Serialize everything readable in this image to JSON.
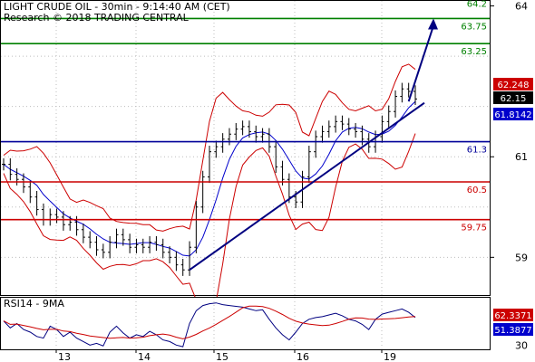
{
  "header": {
    "title": "LIGHT CRUDE OIL - 30min - 9:14:40 AM (CET)",
    "subtitle": "Research © 2018 TRADING CENTRAL"
  },
  "chart_data": [
    {
      "type": "candlestick",
      "y_ticks": [
        "64",
        "61",
        "59"
      ],
      "y_tick_values": [
        64,
        61,
        59
      ],
      "ylim": [
        58.25,
        64.1
      ],
      "x_tick_labels": [
        "13",
        "14",
        "15",
        "16",
        "19"
      ],
      "grid": true,
      "levels": [
        {
          "label": "64.2",
          "value": 64.2,
          "color": "#008000"
        },
        {
          "label": "63.75",
          "value": 63.75,
          "color": "#008000"
        },
        {
          "label": "63.25",
          "value": 63.25,
          "color": "#008000"
        },
        {
          "label": "61.3",
          "value": 61.3,
          "color": "#000099"
        },
        {
          "label": "60.5",
          "value": 60.5,
          "color": "#cc0000"
        },
        {
          "label": "59.75",
          "value": 59.75,
          "color": "#cc0000"
        }
      ],
      "price_tags": [
        {
          "label": "62.248",
          "value": 62.248,
          "color": "#cc0000"
        },
        {
          "label": "62.15",
          "value": 62.15,
          "color": "#000000"
        },
        {
          "label": "61.8142",
          "value": 61.8142,
          "color": "#0000cc"
        }
      ],
      "close_series": [
        60.85,
        60.65,
        60.55,
        60.4,
        60.2,
        59.95,
        59.75,
        59.85,
        59.8,
        59.65,
        59.7,
        59.55,
        59.4,
        59.3,
        59.15,
        59.1,
        59.3,
        59.45,
        59.35,
        59.2,
        59.25,
        59.2,
        59.3,
        59.25,
        59.1,
        59.0,
        58.85,
        58.75,
        59.2,
        60.0,
        60.6,
        61.1,
        61.2,
        61.35,
        61.45,
        61.55,
        61.6,
        61.5,
        61.4,
        61.45,
        61.2,
        60.8,
        60.55,
        60.2,
        60.1,
        60.6,
        61.1,
        61.4,
        61.5,
        61.6,
        61.7,
        61.65,
        61.55,
        61.5,
        61.35,
        61.2,
        61.4,
        61.7,
        61.9,
        62.2,
        62.35,
        62.3,
        62.15
      ],
      "trend_line": {
        "from": [
          28,
          58.75
        ],
        "to": [
          62,
          62.0
        ]
      },
      "forecast_arrow": {
        "from": [
          61,
          62.1
        ],
        "to": [
          62,
          63.75
        ]
      }
    },
    {
      "type": "line",
      "title": "RSI14 - 9MA",
      "y_ticks": [
        "30"
      ],
      "ylim": [
        25,
        85
      ],
      "series": [
        {
          "name": "RSI14",
          "color": "#000080"
        },
        {
          "name": "9MA",
          "color": "#cc0000"
        }
      ],
      "rsi_values": [
        58,
        50,
        55,
        48,
        45,
        40,
        38,
        52,
        48,
        40,
        45,
        38,
        34,
        30,
        32,
        29,
        45,
        52,
        44,
        38,
        42,
        40,
        46,
        42,
        36,
        34,
        30,
        28,
        55,
        70,
        76,
        78,
        79,
        77,
        76,
        75,
        74,
        72,
        70,
        71,
        60,
        50,
        42,
        36,
        45,
        55,
        60,
        62,
        63,
        65,
        67,
        64,
        60,
        58,
        54,
        48,
        60,
        66,
        68,
        70,
        72,
        68,
        62
      ],
      "tags": [
        {
          "label": "62.3371",
          "value": 62.3371,
          "color": "#cc0000"
        },
        {
          "label": "51.3877",
          "value": 51.3877,
          "color": "#0000cc"
        }
      ]
    }
  ]
}
